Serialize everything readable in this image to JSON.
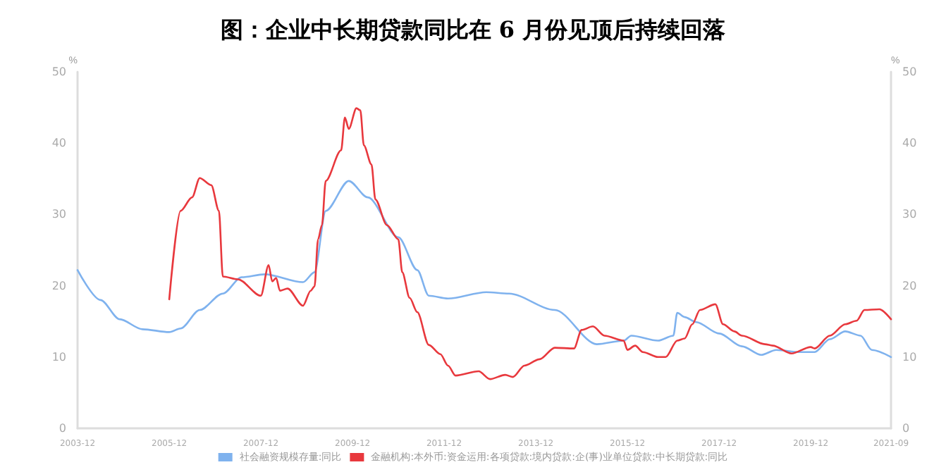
{
  "chart_data": {
    "type": "line",
    "title": "图：企业中长期贷款同比在 6 月份见顶后持续回落",
    "ylabel": "%",
    "y2label": "%",
    "xlim": [
      "2003-12",
      "2021-09"
    ],
    "xticks": [
      "2003-12",
      "2005-12",
      "2007-12",
      "2009-12",
      "2011-12",
      "2013-12",
      "2015-12",
      "2017-12",
      "2019-12",
      "2021-09"
    ],
    "ylim": [
      0,
      50
    ],
    "yticks": [
      0,
      10,
      20,
      30,
      40,
      50
    ],
    "y2lim": [
      0,
      50
    ],
    "y2ticks": [
      0,
      10,
      20,
      30,
      40,
      50
    ],
    "grid": false,
    "legend": "bottom",
    "marker": "none",
    "line_style": "solid",
    "series": [
      {
        "name": "社会融资规模存量:同比",
        "color": "#7fb2ee",
        "x": [
          "2003-12",
          "2004-06",
          "2004-11",
          "2005-05",
          "2005-12",
          "2006-03",
          "2006-08",
          "2007-02",
          "2007-07",
          "2008-01",
          "2008-11",
          "2009-02",
          "2009-05",
          "2009-11",
          "2010-04",
          "2010-12",
          "2011-05",
          "2011-08",
          "2012-01",
          "2012-11",
          "2013-05",
          "2014-05",
          "2015-04",
          "2015-11",
          "2016-01",
          "2016-08",
          "2016-12",
          "2017-01",
          "2017-03",
          "2017-06",
          "2017-12",
          "2018-06",
          "2018-11",
          "2019-03",
          "2019-09",
          "2020-01",
          "2020-05",
          "2020-09",
          "2021-01",
          "2021-04",
          "2021-09"
        ],
        "values": [
          22.2,
          18.0,
          15.3,
          13.9,
          13.5,
          14.0,
          16.6,
          18.9,
          21.2,
          21.6,
          20.5,
          21.9,
          30.5,
          34.7,
          32.4,
          26.8,
          22.2,
          18.6,
          18.2,
          19.1,
          18.9,
          16.6,
          11.8,
          12.3,
          13.0,
          12.3,
          13.0,
          16.2,
          15.6,
          14.9,
          13.3,
          11.5,
          10.3,
          11.0,
          10.7,
          10.7,
          12.5,
          13.6,
          13.0,
          11.0,
          10.0
        ]
      },
      {
        "name": "金融机构:本外币:资金运用:各项贷款:境内贷款:企(事)业单位贷款:中长期贷款:同比",
        "color": "#e8383d",
        "x": [
          "2005-12",
          "2006-03",
          "2006-06",
          "2006-08",
          "2006-11",
          "2007-01",
          "2007-02",
          "2007-06",
          "2007-12",
          "2008-02",
          "2008-03",
          "2008-04",
          "2008-05",
          "2008-07",
          "2008-11",
          "2009-01",
          "2009-02",
          "2009-03",
          "2009-04",
          "2009-05",
          "2009-09",
          "2009-10",
          "2009-11",
          "2010-01",
          "2010-02",
          "2010-03",
          "2010-05",
          "2010-06",
          "2010-09",
          "2010-12",
          "2011-01",
          "2011-03",
          "2011-05",
          "2011-08",
          "2011-11",
          "2012-01",
          "2012-03",
          "2012-09",
          "2012-12",
          "2013-04",
          "2013-06",
          "2013-09",
          "2014-01",
          "2014-05",
          "2014-10",
          "2014-12",
          "2015-03",
          "2015-06",
          "2015-11",
          "2015-12",
          "2016-02",
          "2016-04",
          "2016-08",
          "2016-10",
          "2017-01",
          "2017-03",
          "2017-05",
          "2017-07",
          "2017-11",
          "2018-01",
          "2018-04",
          "2018-06",
          "2018-12",
          "2019-02",
          "2019-07",
          "2019-12",
          "2020-01",
          "2020-05",
          "2020-09",
          "2020-12",
          "2021-02",
          "2021-06",
          "2021-09"
        ],
        "values": [
          18.1,
          30.5,
          32.4,
          35.1,
          34.1,
          30.5,
          21.3,
          20.9,
          18.6,
          22.9,
          20.6,
          21.1,
          19.3,
          19.6,
          17.2,
          19.3,
          19.9,
          26.5,
          28.5,
          34.7,
          39.0,
          43.6,
          42.0,
          44.9,
          44.6,
          39.7,
          37.0,
          32.1,
          28.5,
          26.5,
          21.9,
          18.3,
          16.3,
          11.7,
          10.4,
          8.8,
          7.4,
          8.0,
          6.9,
          7.5,
          7.2,
          8.8,
          9.7,
          11.3,
          11.2,
          13.8,
          14.3,
          13.0,
          12.3,
          11.0,
          11.6,
          10.7,
          10.0,
          10.0,
          12.3,
          12.6,
          14.6,
          16.6,
          17.4,
          14.6,
          13.6,
          13.0,
          11.8,
          11.6,
          10.5,
          11.4,
          11.2,
          13.0,
          14.6,
          15.1,
          16.6,
          16.7,
          15.3
        ]
      }
    ]
  }
}
